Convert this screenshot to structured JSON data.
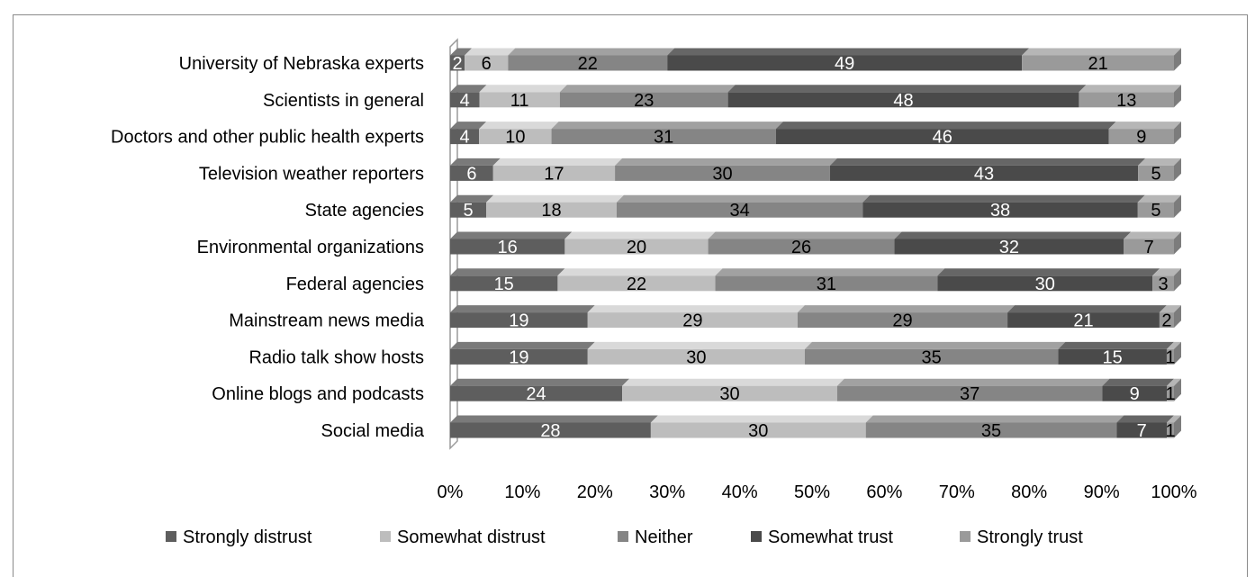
{
  "chart_data": {
    "type": "bar",
    "orientation": "horizontal",
    "stacked": "percent",
    "categories": [
      "University of Nebraska experts",
      "Scientists in general",
      "Doctors and other public health experts",
      "Television weather reporters",
      "State agencies",
      "Environmental organizations",
      "Federal agencies",
      "Mainstream news media",
      "Radio talk show hosts",
      "Online blogs and podcasts",
      "Social media"
    ],
    "series": [
      {
        "name": "Strongly distrust",
        "values": [
          2,
          4,
          4,
          6,
          5,
          16,
          15,
          19,
          19,
          24,
          28
        ]
      },
      {
        "name": "Somewhat distrust",
        "values": [
          6,
          11,
          10,
          17,
          18,
          20,
          22,
          29,
          30,
          30,
          30
        ]
      },
      {
        "name": "Neither",
        "values": [
          22,
          23,
          31,
          30,
          34,
          26,
          31,
          29,
          35,
          37,
          35
        ]
      },
      {
        "name": "Somewhat trust",
        "values": [
          49,
          48,
          46,
          43,
          38,
          32,
          30,
          21,
          15,
          9,
          7
        ]
      },
      {
        "name": "Strongly trust",
        "values": [
          21,
          13,
          9,
          5,
          5,
          7,
          3,
          2,
          1,
          1,
          1
        ]
      }
    ],
    "series_colors": [
      "#5e5e5e",
      "#bdbdbd",
      "#858585",
      "#4a4a4a",
      "#9a9a9a"
    ],
    "series_label_colors": [
      "#ffffff",
      "#000000",
      "#000000",
      "#ffffff",
      "#000000"
    ],
    "x_ticks": [
      "0%",
      "10%",
      "20%",
      "30%",
      "40%",
      "50%",
      "60%",
      "70%",
      "80%",
      "90%",
      "100%"
    ],
    "xlim": [
      0,
      100
    ],
    "legend_position": "bottom",
    "grid": false
  }
}
